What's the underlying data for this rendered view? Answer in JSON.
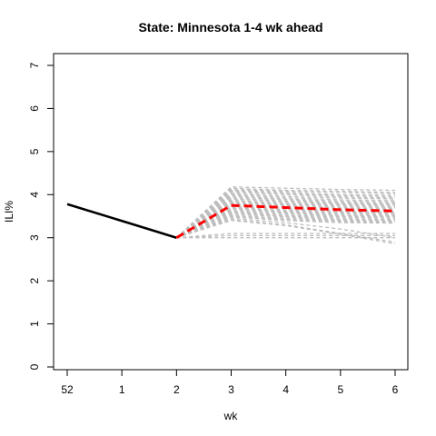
{
  "chart_data": {
    "type": "line",
    "title": "State: Minnesota 1-4 wk ahead",
    "xlabel": "wk",
    "ylabel": "ILI%",
    "x_tick_labels": [
      "52",
      "1",
      "2",
      "3",
      "4",
      "5",
      "6"
    ],
    "y_tick_labels": [
      "0",
      "1",
      "2",
      "3",
      "4",
      "5",
      "6",
      "7"
    ],
    "ylim": [
      0,
      7
    ],
    "grid": false,
    "legend": "none",
    "observed": {
      "x": [
        "52",
        "1",
        "2"
      ],
      "values": [
        3.78,
        null,
        3.0
      ],
      "color": "#000000"
    },
    "median_forecast": {
      "x": [
        "2",
        "3",
        "4",
        "5",
        "6"
      ],
      "values": [
        3.0,
        3.75,
        3.7,
        3.65,
        3.62
      ],
      "color": "#ff0000"
    },
    "ensemble_color": "#bebebe",
    "ensemble_forecasts": [
      [
        3.0,
        4.18,
        4.15,
        4.12,
        4.1
      ],
      [
        3.0,
        4.15,
        4.1,
        4.08,
        4.05
      ],
      [
        3.0,
        4.12,
        4.08,
        4.05,
        4.02
      ],
      [
        3.0,
        4.1,
        4.05,
        4.0,
        3.98
      ],
      [
        3.0,
        4.08,
        4.02,
        3.98,
        3.95
      ],
      [
        3.0,
        4.05,
        4.0,
        3.95,
        3.92
      ],
      [
        3.0,
        4.02,
        3.96,
        3.92,
        3.9
      ],
      [
        3.0,
        4.0,
        3.93,
        3.88,
        3.86
      ],
      [
        3.0,
        3.97,
        3.9,
        3.85,
        3.83
      ],
      [
        3.0,
        3.95,
        3.88,
        3.82,
        3.8
      ],
      [
        3.0,
        3.92,
        3.85,
        3.8,
        3.78
      ],
      [
        3.0,
        3.9,
        3.83,
        3.78,
        3.75
      ],
      [
        3.0,
        3.87,
        3.8,
        3.76,
        3.73
      ],
      [
        3.0,
        3.85,
        3.78,
        3.73,
        3.7
      ],
      [
        3.0,
        3.82,
        3.76,
        3.7,
        3.68
      ],
      [
        3.0,
        3.8,
        3.73,
        3.68,
        3.65
      ],
      [
        3.0,
        3.78,
        3.7,
        3.65,
        3.62
      ],
      [
        3.0,
        3.75,
        3.68,
        3.62,
        3.6
      ],
      [
        3.0,
        3.72,
        3.65,
        3.6,
        3.58
      ],
      [
        3.0,
        3.7,
        3.62,
        3.58,
        3.55
      ],
      [
        3.0,
        3.68,
        3.6,
        3.55,
        3.52
      ],
      [
        3.0,
        3.65,
        3.58,
        3.52,
        3.5
      ],
      [
        3.0,
        3.62,
        3.55,
        3.5,
        3.48
      ],
      [
        3.0,
        3.6,
        3.52,
        3.48,
        3.45
      ],
      [
        3.0,
        3.58,
        3.5,
        3.45,
        3.42
      ],
      [
        3.0,
        3.55,
        3.48,
        3.42,
        3.4
      ],
      [
        3.0,
        3.52,
        3.45,
        3.4,
        3.38
      ],
      [
        3.0,
        3.5,
        3.42,
        3.38,
        3.36
      ],
      [
        3.0,
        3.48,
        3.4,
        3.35,
        3.34
      ],
      [
        3.0,
        3.45,
        3.35,
        3.2,
        3.0
      ],
      [
        3.0,
        3.42,
        3.3,
        3.1,
        2.9
      ],
      [
        3.0,
        3.4,
        3.28,
        3.08,
        2.86
      ],
      [
        3.0,
        3.1,
        3.1,
        3.1,
        3.1
      ],
      [
        3.0,
        3.05,
        3.05,
        3.05,
        3.05
      ],
      [
        3.0,
        3.0,
        3.0,
        3.0,
        3.0
      ]
    ]
  }
}
